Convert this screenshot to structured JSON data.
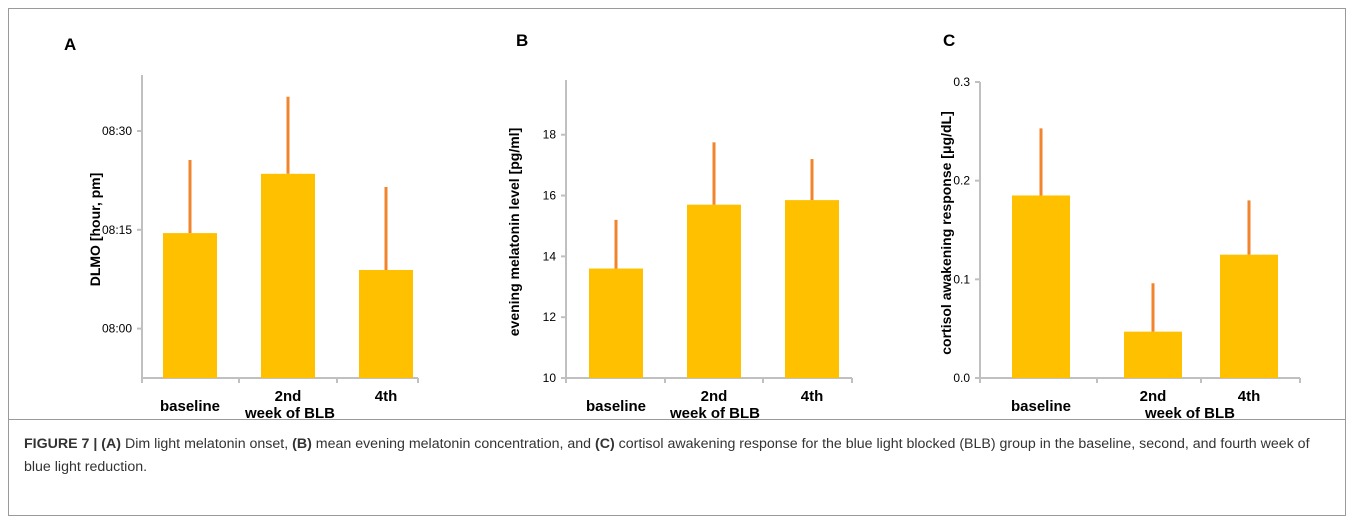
{
  "chart_data": [
    {
      "type": "bar",
      "panel_label": "A",
      "ylabel": "DLMO [hour, pm]",
      "categories": [
        "baseline",
        "2nd",
        "4th"
      ],
      "xlabel": "week of BLB",
      "yticks": [
        "08:00",
        "08:15",
        "08:30"
      ],
      "ytick_values": [
        480,
        495,
        510
      ],
      "ylim": [
        472.5,
        518.5
      ],
      "values": [
        494.5,
        503.5,
        488.9
      ],
      "error_upper": [
        505.6,
        515.2,
        501.5
      ],
      "bar_color": "#FFC000",
      "error_color": "#F0852D"
    },
    {
      "type": "bar",
      "panel_label": "B",
      "ylabel": "evening melatonin level [pg/ml]",
      "categories": [
        "baseline",
        "2nd",
        "4th"
      ],
      "xlabel": "week of BLB",
      "yticks": [
        "10",
        "12",
        "14",
        "16",
        "18"
      ],
      "ytick_values": [
        10,
        12,
        14,
        16,
        18
      ],
      "ylim": [
        10,
        19.8
      ],
      "values": [
        13.6,
        15.7,
        15.85
      ],
      "error_upper": [
        15.2,
        17.75,
        17.2
      ],
      "bar_color": "#FFC000",
      "error_color": "#F0852D"
    },
    {
      "type": "bar",
      "panel_label": "C",
      "ylabel": "cortisol awakening response [μg/dL]",
      "categories": [
        "baseline",
        "2nd",
        "4th"
      ],
      "xlabel": "week of BLB",
      "yticks": [
        "0.0",
        "0.1",
        "0.2",
        "0.3"
      ],
      "ytick_values": [
        0,
        0.1,
        0.2,
        0.3
      ],
      "ylim": [
        0,
        0.3
      ],
      "values": [
        0.185,
        0.047,
        0.125
      ],
      "error_upper": [
        0.253,
        0.096,
        0.18
      ],
      "bar_color": "#FFC000",
      "error_color": "#F0852D"
    }
  ],
  "caption": {
    "figure_label": "FIGURE 7 |",
    "a_marker": "(A)",
    "a_text": " Dim light melatonin onset, ",
    "b_marker": "(B)",
    "b_text": " mean evening melatonin concentration, and ",
    "c_marker": "(C)",
    "c_text": " cortisol awakening response for the blue light blocked (BLB) group in the baseline, second, and fourth week of blue light reduction."
  }
}
